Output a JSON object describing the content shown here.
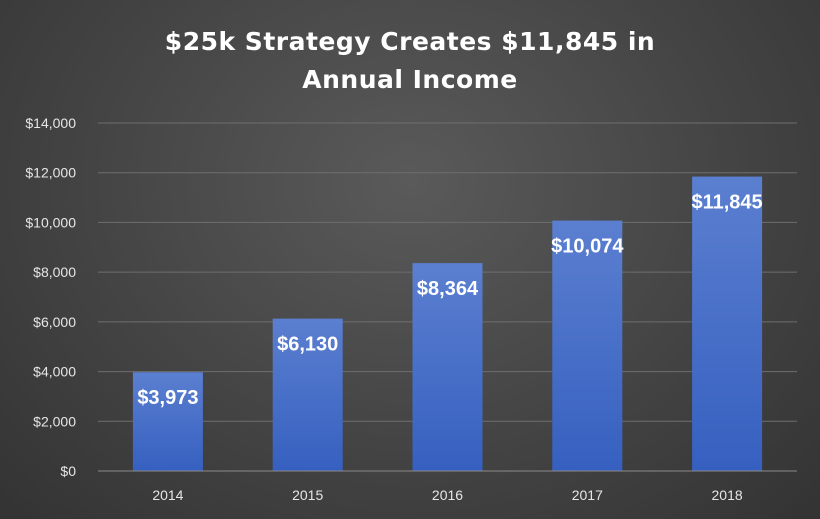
{
  "chart_data": {
    "type": "bar",
    "title_lines": [
      "$25k Strategy Creates $11,845 in",
      "Annual Income"
    ],
    "categories": [
      "2014",
      "2015",
      "2016",
      "2017",
      "2018"
    ],
    "values": [
      3973,
      6130,
      8364,
      10074,
      11845
    ],
    "data_labels": [
      "$3,973",
      "$6,130",
      "$8,364",
      "$10,074",
      "$11,845"
    ],
    "y_ticks": [
      0,
      2000,
      4000,
      6000,
      8000,
      10000,
      12000,
      14000
    ],
    "y_tick_labels": [
      "$0",
      "$2,000",
      "$4,000",
      "$6,000",
      "$8,000",
      "$10,000",
      "$12,000",
      "$14,000"
    ],
    "ylim": [
      0,
      14000
    ],
    "grid": true,
    "legend": "none",
    "colors": {
      "bar_top": "#5b7fd0",
      "bar_bottom": "#3660c0",
      "grid": "#6e6e6e",
      "axis": "#8a8a8a",
      "text": "#ffffff"
    }
  }
}
